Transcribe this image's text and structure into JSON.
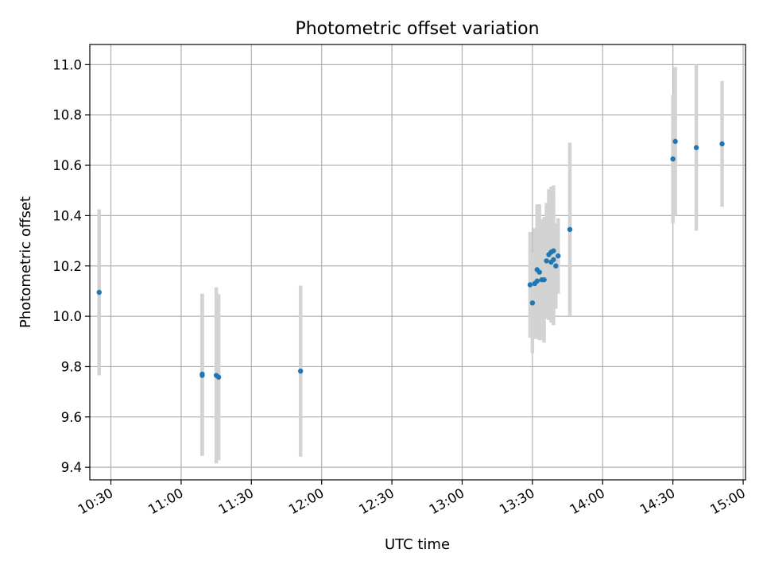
{
  "chart_data": {
    "type": "scatter",
    "title": "Photometric offset variation",
    "xlabel": "UTC time",
    "ylabel": "Photometric offset",
    "x_unit": "minutes",
    "xlim": [
      "10:21",
      "15:01"
    ],
    "ylim": [
      9.35,
      11.08
    ],
    "grid": true,
    "colors": {
      "point": "#1f77b4",
      "errorbar": "#d3d3d3"
    },
    "x_ticks": [
      "10:30",
      "11:00",
      "11:30",
      "12:00",
      "12:30",
      "13:00",
      "13:30",
      "14:00",
      "14:30",
      "15:00"
    ],
    "y_ticks": [
      "9.4",
      "9.6",
      "9.8",
      "10.0",
      "10.2",
      "10.4",
      "10.6",
      "10.8",
      "11.0"
    ],
    "points": [
      {
        "t": "10:25",
        "y": 10.095,
        "err": 0.33
      },
      {
        "t": "11:09",
        "y": 9.77,
        "err": 0.32
      },
      {
        "t": "11:09",
        "y": 9.765,
        "err": 0.32
      },
      {
        "t": "11:15",
        "y": 9.765,
        "err": 0.35
      },
      {
        "t": "11:16",
        "y": 9.758,
        "err": 0.33
      },
      {
        "t": "11:51",
        "y": 9.782,
        "err": 0.34
      },
      {
        "t": "13:29",
        "y": 10.125,
        "err": 0.21
      },
      {
        "t": "13:30",
        "y": 10.053,
        "err": 0.2
      },
      {
        "t": "13:31",
        "y": 10.13,
        "err": 0.22
      },
      {
        "t": "13:32",
        "y": 10.14,
        "err": 0.23
      },
      {
        "t": "13:32",
        "y": 10.185,
        "err": 0.26
      },
      {
        "t": "13:33",
        "y": 10.175,
        "err": 0.27
      },
      {
        "t": "13:34",
        "y": 10.145,
        "err": 0.24
      },
      {
        "t": "13:35",
        "y": 10.145,
        "err": 0.25
      },
      {
        "t": "13:36",
        "y": 10.22,
        "err": 0.23
      },
      {
        "t": "13:37",
        "y": 10.245,
        "err": 0.26
      },
      {
        "t": "13:38",
        "y": 10.215,
        "err": 0.24
      },
      {
        "t": "13:38",
        "y": 10.255,
        "err": 0.26
      },
      {
        "t": "13:39",
        "y": 10.225,
        "err": 0.26
      },
      {
        "t": "13:39",
        "y": 10.26,
        "err": 0.26
      },
      {
        "t": "13:40",
        "y": 10.2,
        "err": 0.17
      },
      {
        "t": "13:41",
        "y": 10.24,
        "err": 0.15
      },
      {
        "t": "13:46",
        "y": 10.345,
        "err": 0.345
      },
      {
        "t": "14:30",
        "y": 10.625,
        "err": 0.255
      },
      {
        "t": "14:31",
        "y": 10.695,
        "err": 0.295
      },
      {
        "t": "14:40",
        "y": 10.67,
        "err": 0.33
      },
      {
        "t": "14:51",
        "y": 10.685,
        "err": 0.25
      }
    ]
  }
}
